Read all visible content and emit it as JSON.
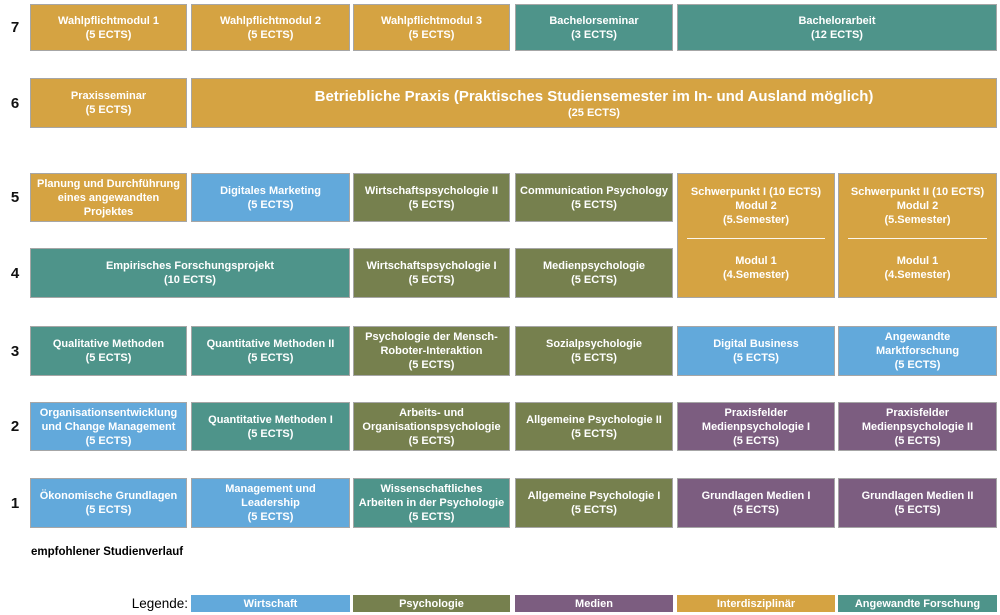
{
  "categories": {
    "wirtschaft": {
      "label": "Wirtschaft",
      "color": "#62A9DB"
    },
    "psychologie": {
      "label": "Psychologie",
      "color": "#76804E"
    },
    "medien": {
      "label": "Medien",
      "color": "#7C5D80"
    },
    "interdisziplinaer": {
      "label": "Interdisziplinär",
      "color": "#D5A342"
    },
    "angewandte_forschung": {
      "label": "Angewandte Forschung",
      "color": "#4E948A"
    }
  },
  "semesters": [
    {
      "number": "7"
    },
    {
      "number": "6"
    },
    {
      "number": "5"
    },
    {
      "number": "4"
    },
    {
      "number": "3"
    },
    {
      "number": "2"
    },
    {
      "number": "1"
    }
  ],
  "modules": [
    {
      "title": "Wahlpflichtmodul 1",
      "ects": "(5 ECTS)",
      "category": "interdisziplinaer",
      "row": 7,
      "col": 1
    },
    {
      "title": "Wahlpflichtmodul 2",
      "ects": "(5 ECTS)",
      "category": "interdisziplinaer",
      "row": 7,
      "col": 2
    },
    {
      "title": "Wahlpflichtmodul 3",
      "ects": "(5 ECTS)",
      "category": "interdisziplinaer",
      "row": 7,
      "col": 3
    },
    {
      "title": "Bachelorseminar",
      "ects": "(3 ECTS)",
      "category": "angewandte_forschung",
      "row": 7,
      "col": 4
    },
    {
      "title": "Bachelorarbeit",
      "ects": "(12 ECTS)",
      "category": "angewandte_forschung",
      "row": 7,
      "col": 5,
      "span": 2
    },
    {
      "title": "Praxisseminar",
      "ects": "(5 ECTS)",
      "category": "interdisziplinaer",
      "row": 6,
      "col": 1
    },
    {
      "title": "Betriebliche Praxis (Praktisches Studiensemester im In- und Ausland möglich)",
      "ects": "(25 ECTS)",
      "category": "interdisziplinaer",
      "row": 6,
      "col": 2,
      "span": 5,
      "large_title": true
    },
    {
      "title": "Planung und Durchführung eines angewandten Projektes",
      "category": "interdisziplinaer",
      "row": 5,
      "col": 1
    },
    {
      "title": "Digitales Marketing",
      "ects": "(5 ECTS)",
      "category": "wirtschaft",
      "row": 5,
      "col": 2
    },
    {
      "title": "Wirtschaftspsychologie II",
      "ects": "(5 ECTS)",
      "category": "psychologie",
      "row": 5,
      "col": 3
    },
    {
      "title": "Communication Psychology",
      "ects": "(5 ECTS)",
      "category": "psychologie",
      "row": 5,
      "col": 4
    },
    {
      "title": "Empirisches Forschungsprojekt",
      "ects": "(10 ECTS)",
      "category": "angewandte_forschung",
      "row": 4,
      "col": 1,
      "span": 2
    },
    {
      "title": "Wirtschaftspsychologie I",
      "ects": "(5 ECTS)",
      "category": "psychologie",
      "row": 4,
      "col": 3
    },
    {
      "title": "Medienpsychologie",
      "ects": "(5 ECTS)",
      "category": "psychologie",
      "row": 4,
      "col": 4
    },
    {
      "title": "Qualitative Methoden",
      "ects": "(5 ECTS)",
      "category": "angewandte_forschung",
      "row": 3,
      "col": 1
    },
    {
      "title": "Quantitative Methoden II",
      "ects": "(5 ECTS)",
      "category": "angewandte_forschung",
      "row": 3,
      "col": 2
    },
    {
      "title": "Psychologie der Mensch-Roboter-Interaktion",
      "ects": "(5 ECTS)",
      "category": "psychologie",
      "row": 3,
      "col": 3
    },
    {
      "title": "Sozialpsychologie",
      "ects": "(5 ECTS)",
      "category": "psychologie",
      "row": 3,
      "col": 4
    },
    {
      "title": "Digital Business",
      "ects": "(5 ECTS)",
      "category": "wirtschaft",
      "row": 3,
      "col": 5
    },
    {
      "title": "Angewandte Marktforschung",
      "ects": "(5 ECTS)",
      "category": "wirtschaft",
      "row": 3,
      "col": 6
    },
    {
      "title": "Organisationsentwicklung und Change Management",
      "ects": "(5 ECTS)",
      "category": "wirtschaft",
      "row": 2,
      "col": 1
    },
    {
      "title": "Quantitative Methoden I",
      "ects": "(5 ECTS)",
      "category": "angewandte_forschung",
      "row": 2,
      "col": 2
    },
    {
      "title": "Arbeits- und Organisationspsychologie",
      "ects": "(5 ECTS)",
      "category": "psychologie",
      "row": 2,
      "col": 3
    },
    {
      "title": "Allgemeine Psychologie II",
      "ects": "(5 ECTS)",
      "category": "psychologie",
      "row": 2,
      "col": 4
    },
    {
      "title": "Praxisfelder Medienpsychologie I",
      "ects": "(5 ECTS)",
      "category": "medien",
      "row": 2,
      "col": 5
    },
    {
      "title": "Praxisfelder Medienpsychologie II",
      "ects": "(5 ECTS)",
      "category": "medien",
      "row": 2,
      "col": 6
    },
    {
      "title": "Ökonomische Grundlagen",
      "ects": "(5 ECTS)",
      "category": "wirtschaft",
      "row": 1,
      "col": 1
    },
    {
      "title": "Management und Leadership",
      "ects": "(5 ECTS)",
      "category": "wirtschaft",
      "row": 1,
      "col": 2
    },
    {
      "title": "Wissenschaftliches Arbeiten in der Psychologie",
      "ects": "(5 ECTS)",
      "category": "angewandte_forschung",
      "row": 1,
      "col": 3
    },
    {
      "title": "Allgemeine Psychologie I",
      "ects": "(5 ECTS)",
      "category": "psychologie",
      "row": 1,
      "col": 4
    },
    {
      "title": "Grundlagen Medien I",
      "ects": "(5 ECTS)",
      "category": "medien",
      "row": 1,
      "col": 5
    },
    {
      "title": "Grundlagen Medien II",
      "ects": "(5 ECTS)",
      "category": "medien",
      "row": 1,
      "col": 6
    }
  ],
  "focus_modules": [
    {
      "category": "interdisziplinaer",
      "col": 5,
      "lines_top": [
        "Schwerpunkt I (10 ECTS)",
        "Modul 2",
        "(5.Semester)"
      ],
      "lines_bottom": [
        "Modul 1",
        "(4.Semester)"
      ]
    },
    {
      "category": "interdisziplinaer",
      "col": 6,
      "lines_top": [
        "Schwerpunkt II (10 ECTS)",
        "Modul 2",
        "(5.Semester)"
      ],
      "lines_bottom": [
        "Modul 1",
        "(4.Semester)"
      ]
    }
  ],
  "footer": {
    "note": "empfohlener Studienverlauf",
    "legend_label": "Legende:"
  },
  "legend_order": [
    "wirtschaft",
    "psychologie",
    "medien",
    "interdisziplinaer",
    "angewandte_forschung"
  ]
}
